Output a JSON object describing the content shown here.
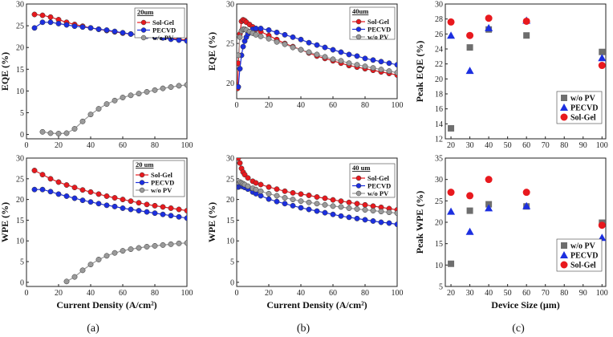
{
  "colors": {
    "sol_gel": "#e8191e",
    "pecvd": "#1c2fe0",
    "wo_pv": "#9a9a9a",
    "wo_pv_square": "#6e6e6e"
  },
  "captions": [
    "(a)",
    "(b)",
    "(c)"
  ],
  "chart_data": [
    {
      "id": "a_top",
      "type": "line",
      "title": "20um",
      "xlabel": "",
      "ylabel": "EQE (%)",
      "xlim": [
        0,
        100
      ],
      "ylim": [
        -1,
        30
      ],
      "xticks": [
        0,
        20,
        40,
        60,
        80,
        100
      ],
      "yticks": [
        0,
        5,
        10,
        15,
        20,
        25,
        30
      ],
      "show_xticklabels": true,
      "legend": "top-right",
      "series": [
        {
          "name": "Sol-Gel",
          "color": "#e8191e",
          "x": [
            5,
            10,
            15,
            20,
            25,
            30,
            35,
            40,
            45,
            50,
            55,
            60,
            65,
            70,
            75,
            80,
            85,
            90,
            95,
            100
          ],
          "y": [
            27.6,
            27.4,
            27.0,
            26.4,
            25.8,
            25.3,
            24.9,
            24.5,
            24.2,
            23.9,
            23.6,
            23.3,
            23.1,
            22.9,
            22.7,
            22.5,
            22.3,
            22.1,
            21.9,
            21.7
          ]
        },
        {
          "name": "PECVD",
          "color": "#1c2fe0",
          "x": [
            5,
            10,
            15,
            20,
            25,
            30,
            35,
            40,
            45,
            50,
            55,
            60,
            65,
            70,
            75,
            80,
            85,
            90,
            95,
            100
          ],
          "y": [
            24.5,
            25.8,
            25.8,
            25.5,
            25.2,
            24.9,
            24.7,
            24.5,
            24.2,
            24.0,
            23.7,
            23.4,
            23.1,
            22.9,
            22.6,
            22.4,
            22.2,
            21.9,
            21.7,
            21.5
          ]
        },
        {
          "name": "w/o PV",
          "color": "#9a9a9a",
          "x": [
            10,
            15,
            20,
            25,
            30,
            35,
            40,
            45,
            50,
            55,
            60,
            65,
            70,
            75,
            80,
            85,
            90,
            95,
            100
          ],
          "y": [
            0.6,
            0.3,
            0.2,
            0.3,
            1.3,
            3.0,
            4.6,
            5.9,
            7.0,
            7.8,
            8.5,
            9.0,
            9.4,
            9.8,
            10.2,
            10.6,
            10.9,
            11.2,
            11.4
          ]
        }
      ]
    },
    {
      "id": "a_bot",
      "type": "line",
      "title": "20 um",
      "xlabel": "Current Density (A/cm²)",
      "ylabel": "WPE (%)",
      "xlim": [
        0,
        100
      ],
      "ylim": [
        -1,
        30
      ],
      "xticks": [
        0,
        20,
        40,
        60,
        80,
        100
      ],
      "yticks": [
        0,
        5,
        10,
        15,
        20,
        25,
        30
      ],
      "show_xticklabels": true,
      "legend": "top-right",
      "series": [
        {
          "name": "Sol-Gel",
          "color": "#e8191e",
          "x": [
            5,
            10,
            15,
            20,
            25,
            30,
            35,
            40,
            45,
            50,
            55,
            60,
            65,
            70,
            75,
            80,
            85,
            90,
            95,
            100
          ],
          "y": [
            27.0,
            26.0,
            25.0,
            24.2,
            23.5,
            22.9,
            22.3,
            21.8,
            21.3,
            20.8,
            20.4,
            20.0,
            19.6,
            19.2,
            18.8,
            18.5,
            18.2,
            17.9,
            17.6,
            17.3
          ]
        },
        {
          "name": "PECVD",
          "color": "#1c2fe0",
          "x": [
            5,
            10,
            15,
            20,
            25,
            30,
            35,
            40,
            45,
            50,
            55,
            60,
            65,
            70,
            75,
            80,
            85,
            90,
            95,
            100
          ],
          "y": [
            22.4,
            22.4,
            21.9,
            21.3,
            20.8,
            20.3,
            19.8,
            19.4,
            19.0,
            18.6,
            18.3,
            17.9,
            17.6,
            17.3,
            17.0,
            16.7,
            16.4,
            16.1,
            15.8,
            15.5
          ]
        },
        {
          "name": "w/o PV",
          "color": "#9a9a9a",
          "x": [
            25,
            30,
            35,
            40,
            45,
            50,
            55,
            60,
            65,
            70,
            75,
            80,
            85,
            90,
            95,
            100
          ],
          "y": [
            0.2,
            1.3,
            2.9,
            4.3,
            5.5,
            6.4,
            7.1,
            7.6,
            8.0,
            8.3,
            8.6,
            8.8,
            9.0,
            9.2,
            9.4,
            9.5
          ]
        }
      ]
    },
    {
      "id": "b_top",
      "type": "line",
      "title": "40um",
      "xlabel": "",
      "ylabel": "EQE (%)",
      "xlim": [
        0,
        100
      ],
      "ylim": [
        18,
        30
      ],
      "xticks": [
        0,
        20,
        40,
        60,
        80,
        100
      ],
      "yticks": [
        20,
        25,
        30
      ],
      "show_xticklabels": true,
      "legend": "top-right",
      "series": [
        {
          "name": "Sol-Gel",
          "color": "#e8191e",
          "x": [
            0.5,
            1,
            2,
            3,
            4,
            5,
            6,
            8,
            10,
            12,
            15,
            20,
            25,
            30,
            35,
            40,
            45,
            50,
            55,
            60,
            65,
            70,
            75,
            80,
            85,
            90,
            95,
            100
          ],
          "y": [
            19.3,
            22.5,
            26.2,
            27.8,
            28.0,
            27.9,
            27.7,
            27.4,
            27.1,
            26.8,
            26.5,
            26.0,
            25.5,
            25.0,
            24.6,
            24.2,
            23.8,
            23.4,
            23.1,
            22.8,
            22.5,
            22.2,
            22.0,
            21.8,
            21.6,
            21.4,
            21.2,
            21.0
          ]
        },
        {
          "name": "PECVD",
          "color": "#1c2fe0",
          "x": [
            1,
            2,
            3,
            4,
            5,
            6,
            7,
            8,
            10,
            12,
            15,
            20,
            25,
            30,
            35,
            40,
            45,
            50,
            55,
            60,
            65,
            70,
            75,
            80,
            85,
            90,
            95,
            100
          ],
          "y": [
            19.5,
            21.8,
            23.5,
            24.6,
            25.3,
            25.8,
            26.2,
            26.5,
            26.8,
            26.9,
            26.9,
            26.7,
            26.4,
            26.1,
            25.8,
            25.5,
            25.1,
            24.8,
            24.5,
            24.2,
            23.9,
            23.6,
            23.4,
            23.1,
            22.9,
            22.7,
            22.5,
            22.3
          ]
        },
        {
          "name": "w/o PV",
          "color": "#9a9a9a",
          "x": [
            1,
            2,
            3,
            4,
            5,
            6,
            8,
            10,
            12,
            15,
            20,
            25,
            30,
            35,
            40,
            45,
            50,
            55,
            60,
            65,
            70,
            75,
            80,
            85,
            90,
            95,
            100
          ],
          "y": [
            23.5,
            25.8,
            26.6,
            26.8,
            26.8,
            26.7,
            26.5,
            26.3,
            26.1,
            25.9,
            25.6,
            25.2,
            24.9,
            24.5,
            24.2,
            23.9,
            23.6,
            23.3,
            23.0,
            22.8,
            22.5,
            22.3,
            22.1,
            21.9,
            21.7,
            21.5,
            21.3
          ]
        }
      ]
    },
    {
      "id": "b_bot",
      "type": "line",
      "title": "40 um",
      "xlabel": "Current Density (A/cm²)",
      "ylabel": "WPE (%)",
      "xlim": [
        0,
        100
      ],
      "ylim": [
        -1,
        30
      ],
      "xticks": [
        0,
        20,
        40,
        60,
        80,
        100
      ],
      "yticks": [
        0,
        5,
        10,
        15,
        20,
        25,
        30
      ],
      "show_xticklabels": true,
      "legend": "top-right",
      "series": [
        {
          "name": "Sol-Gel",
          "color": "#e8191e",
          "x": [
            1,
            2,
            3,
            4,
            5,
            7,
            10,
            12,
            15,
            20,
            25,
            30,
            35,
            40,
            45,
            50,
            55,
            60,
            65,
            70,
            75,
            80,
            85,
            90,
            95,
            100
          ],
          "y": [
            30.0,
            28.8,
            27.5,
            26.6,
            26.0,
            25.2,
            24.4,
            24.0,
            23.6,
            23.0,
            22.5,
            22.0,
            21.6,
            21.3,
            21.0,
            20.6,
            20.3,
            19.9,
            19.6,
            19.3,
            19.0,
            18.7,
            18.4,
            18.1,
            17.8,
            17.5
          ]
        },
        {
          "name": "PECVD",
          "color": "#1c2fe0",
          "x": [
            1,
            2,
            3,
            4,
            5,
            7,
            10,
            12,
            15,
            20,
            25,
            30,
            35,
            40,
            45,
            50,
            55,
            60,
            65,
            70,
            75,
            80,
            85,
            90,
            95,
            100
          ],
          "y": [
            23.0,
            23.2,
            23.2,
            23.1,
            22.9,
            22.5,
            21.8,
            21.4,
            20.9,
            20.1,
            19.5,
            19.0,
            18.5,
            18.0,
            17.6,
            17.2,
            16.8,
            16.4,
            16.0,
            15.7,
            15.4,
            15.1,
            14.8,
            14.5,
            14.3,
            14.0
          ]
        },
        {
          "name": "w/o PV",
          "color": "#9a9a9a",
          "x": [
            2,
            3,
            4,
            5,
            7,
            10,
            12,
            15,
            20,
            25,
            30,
            35,
            40,
            45,
            50,
            55,
            60,
            65,
            70,
            75,
            80,
            85,
            90,
            95,
            100
          ],
          "y": [
            24.2,
            24.0,
            23.8,
            23.6,
            23.2,
            22.7,
            22.4,
            22.0,
            21.4,
            20.9,
            20.4,
            20.0,
            19.6,
            19.3,
            19.0,
            18.7,
            18.4,
            18.2,
            17.9,
            17.7,
            17.5,
            17.3,
            17.1,
            16.9,
            16.7
          ]
        }
      ]
    },
    {
      "id": "c_top",
      "type": "scatter",
      "title": "",
      "xlabel": "",
      "ylabel": "Peak EQE (%)",
      "xlim": [
        17,
        102
      ],
      "ylim": [
        12,
        30
      ],
      "xticks": [
        20,
        30,
        40,
        50,
        60,
        70,
        80,
        90,
        100
      ],
      "yticks": [
        12,
        14,
        16,
        18,
        20,
        22,
        24,
        26,
        28,
        30
      ],
      "show_xticklabels": true,
      "legend": "bottom-right",
      "series": [
        {
          "name": "w/o PV",
          "color": "#6e6e6e",
          "marker": "square",
          "x": [
            20,
            30,
            40,
            60,
            100
          ],
          "y": [
            13.4,
            24.2,
            26.6,
            25.8,
            23.6
          ]
        },
        {
          "name": "PECVD",
          "color": "#1c2fe0",
          "marker": "triangle",
          "x": [
            20,
            30,
            40,
            60,
            100
          ],
          "y": [
            25.8,
            21.1,
            26.8,
            27.8,
            22.8
          ]
        },
        {
          "name": "Sol-Gel",
          "color": "#e8191e",
          "marker": "circle",
          "x": [
            20,
            30,
            40,
            60,
            100
          ],
          "y": [
            27.6,
            25.8,
            28.1,
            27.7,
            21.8
          ]
        }
      ]
    },
    {
      "id": "c_bot",
      "type": "scatter",
      "title": "",
      "xlabel": "Device Size (μm)",
      "ylabel": "Peak WPE (%)",
      "xlim": [
        17,
        102
      ],
      "ylim": [
        5,
        35
      ],
      "xticks": [
        20,
        30,
        40,
        50,
        60,
        70,
        80,
        90,
        100
      ],
      "yticks": [
        5,
        10,
        15,
        20,
        25,
        30,
        35
      ],
      "show_xticklabels": true,
      "legend": "bottom-right",
      "series": [
        {
          "name": "w/o PV",
          "color": "#6e6e6e",
          "marker": "square",
          "x": [
            20,
            30,
            40,
            60,
            100
          ],
          "y": [
            10.3,
            22.7,
            24.2,
            23.7,
            19.9
          ]
        },
        {
          "name": "PECVD",
          "color": "#1c2fe0",
          "marker": "triangle",
          "x": [
            20,
            30,
            40,
            60,
            100
          ],
          "y": [
            22.5,
            17.8,
            23.3,
            23.8,
            16.4
          ]
        },
        {
          "name": "Sol-Gel",
          "color": "#e8191e",
          "marker": "circle",
          "x": [
            20,
            30,
            40,
            60,
            100
          ],
          "y": [
            27.0,
            26.2,
            30.0,
            27.0,
            19.3
          ]
        }
      ]
    }
  ]
}
